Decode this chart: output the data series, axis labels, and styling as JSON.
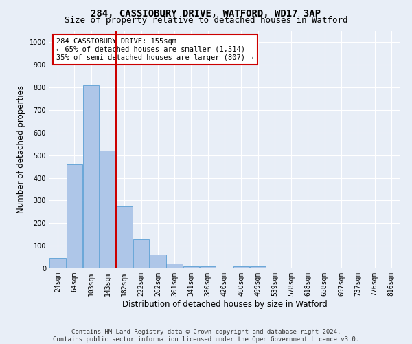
{
  "title": "284, CASSIOBURY DRIVE, WATFORD, WD17 3AP",
  "subtitle": "Size of property relative to detached houses in Watford",
  "xlabel": "Distribution of detached houses by size in Watford",
  "ylabel": "Number of detached properties",
  "footer_line1": "Contains HM Land Registry data © Crown copyright and database right 2024.",
  "footer_line2": "Contains public sector information licensed under the Open Government Licence v3.0.",
  "categories": [
    "24sqm",
    "64sqm",
    "103sqm",
    "143sqm",
    "182sqm",
    "222sqm",
    "262sqm",
    "301sqm",
    "341sqm",
    "380sqm",
    "420sqm",
    "460sqm",
    "499sqm",
    "539sqm",
    "578sqm",
    "618sqm",
    "658sqm",
    "697sqm",
    "737sqm",
    "776sqm",
    "816sqm"
  ],
  "values": [
    47,
    460,
    810,
    520,
    275,
    127,
    60,
    22,
    10,
    10,
    0,
    8,
    8,
    0,
    0,
    0,
    0,
    0,
    0,
    0,
    0
  ],
  "bar_color": "#aec6e8",
  "bar_edge_color": "#5a9fd4",
  "vline_color": "#cc0000",
  "annotation_text": "284 CASSIOBURY DRIVE: 155sqm\n← 65% of detached houses are smaller (1,514)\n35% of semi-detached houses are larger (807) →",
  "annotation_box_color": "#ffffff",
  "annotation_box_edge": "#cc0000",
  "ylim": [
    0,
    1050
  ],
  "background_color": "#e8eef7",
  "grid_color": "#ffffff",
  "title_fontsize": 10,
  "subtitle_fontsize": 9,
  "tick_fontsize": 7,
  "label_fontsize": 8.5,
  "footer_fontsize": 6.5,
  "ann_fontsize": 7.5
}
